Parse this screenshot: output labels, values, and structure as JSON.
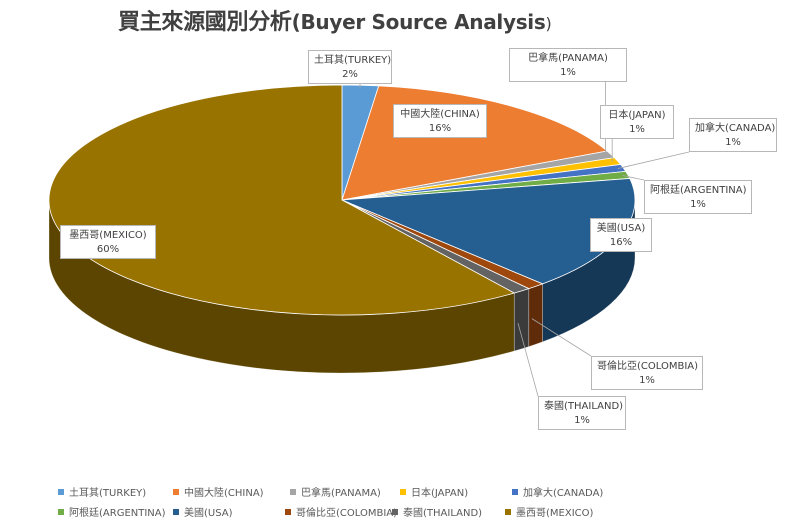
{
  "chart_data": {
    "type": "pie",
    "title_main": "買主來源國別分析",
    "title_en": "(Buyer Source Analysis",
    "title_close": ")",
    "slices": [
      {
        "label": "土耳其(TURKEY)",
        "value": 2,
        "pct_label": "2%",
        "color": "#5B9BD5"
      },
      {
        "label": "中國大陸(CHINA)",
        "value": 16,
        "pct_label": "16%",
        "color": "#ED7D31"
      },
      {
        "label": "巴拿馬(PANAMA)",
        "value": 1,
        "pct_label": "1%",
        "color": "#A5A5A5"
      },
      {
        "label": "日本(JAPAN)",
        "value": 1,
        "pct_label": "1%",
        "color": "#FFC000"
      },
      {
        "label": "加拿大(CANADA)",
        "value": 1,
        "pct_label": "1%",
        "color": "#4472C4"
      },
      {
        "label": "阿根廷(ARGENTINA)",
        "value": 1,
        "pct_label": "1%",
        "color": "#70AD47"
      },
      {
        "label": "美國(USA)",
        "value": 16,
        "pct_label": "16%",
        "color": "#255E91"
      },
      {
        "label": "哥倫比亞(COLOMBIA)",
        "value": 1,
        "pct_label": "1%",
        "color": "#9E480E"
      },
      {
        "label": "泰國(THAILAND)",
        "value": 1,
        "pct_label": "1%",
        "color": "#636363"
      },
      {
        "label": "墨西哥(MEXICO)",
        "value": 60,
        "pct_label": "60%",
        "color": "#997300"
      }
    ],
    "legend_placement": "bottom",
    "style": "3d-pie"
  }
}
